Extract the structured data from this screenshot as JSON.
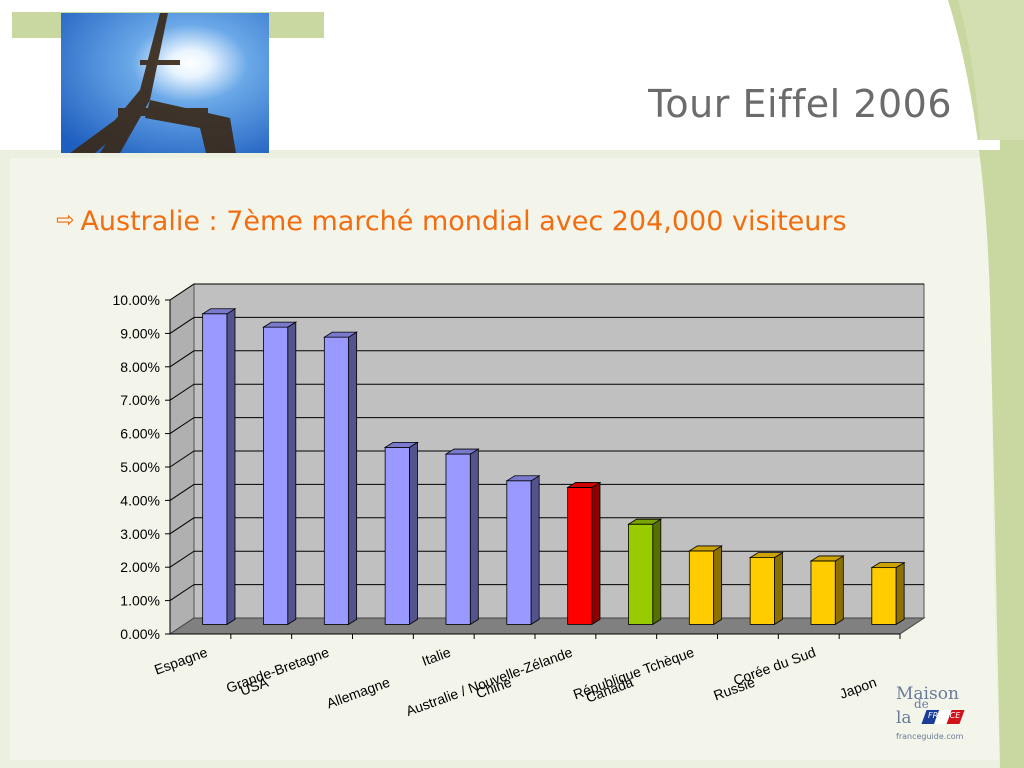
{
  "slide": {
    "title": "Tour Eiffel 2006",
    "subtitle": "Australie : 7ème marché mondial avec 204,000 visiteurs",
    "bullet_icon": "outline-right-arrow-icon"
  },
  "logo": {
    "line1": "Maison",
    "line2": "de",
    "line3": "la",
    "flag_text": "FRANCE",
    "url": "franceguide.com"
  },
  "colors": {
    "accent_orange": "#f26d10",
    "title_gray": "#6b6b6b",
    "bar_blue": "#9999ff",
    "bar_red": "#ff0000",
    "bar_green": "#99cc00",
    "bar_yellow": "#ffcc00",
    "plot_bg": "#c0c0c0",
    "floor": "#808080",
    "frame_green": "#c8d8a0"
  },
  "chart_data": {
    "type": "bar",
    "style": "3d-column",
    "grid": true,
    "legend": "none",
    "categories": [
      "Espagne",
      "USA",
      "Grande-Bretagne",
      "Allemagne",
      "Italie",
      "Chine",
      "Australie / Nouvelle-Zélande",
      "Canada",
      "République Tchèque",
      "Russie",
      "Corée du Sud",
      "Japon"
    ],
    "values": [
      9.3,
      8.9,
      8.6,
      5.3,
      5.1,
      4.3,
      4.1,
      3.0,
      2.2,
      2.0,
      1.9,
      1.7
    ],
    "bar_colors": [
      "#9999ff",
      "#9999ff",
      "#9999ff",
      "#9999ff",
      "#9999ff",
      "#9999ff",
      "#ff0000",
      "#99cc00",
      "#ffcc00",
      "#ffcc00",
      "#ffcc00",
      "#ffcc00"
    ],
    "ylim": [
      0,
      10
    ],
    "yticks": [
      "0.00%",
      "1.00%",
      "2.00%",
      "3.00%",
      "4.00%",
      "5.00%",
      "6.00%",
      "7.00%",
      "8.00%",
      "9.00%",
      "10.00%"
    ]
  }
}
